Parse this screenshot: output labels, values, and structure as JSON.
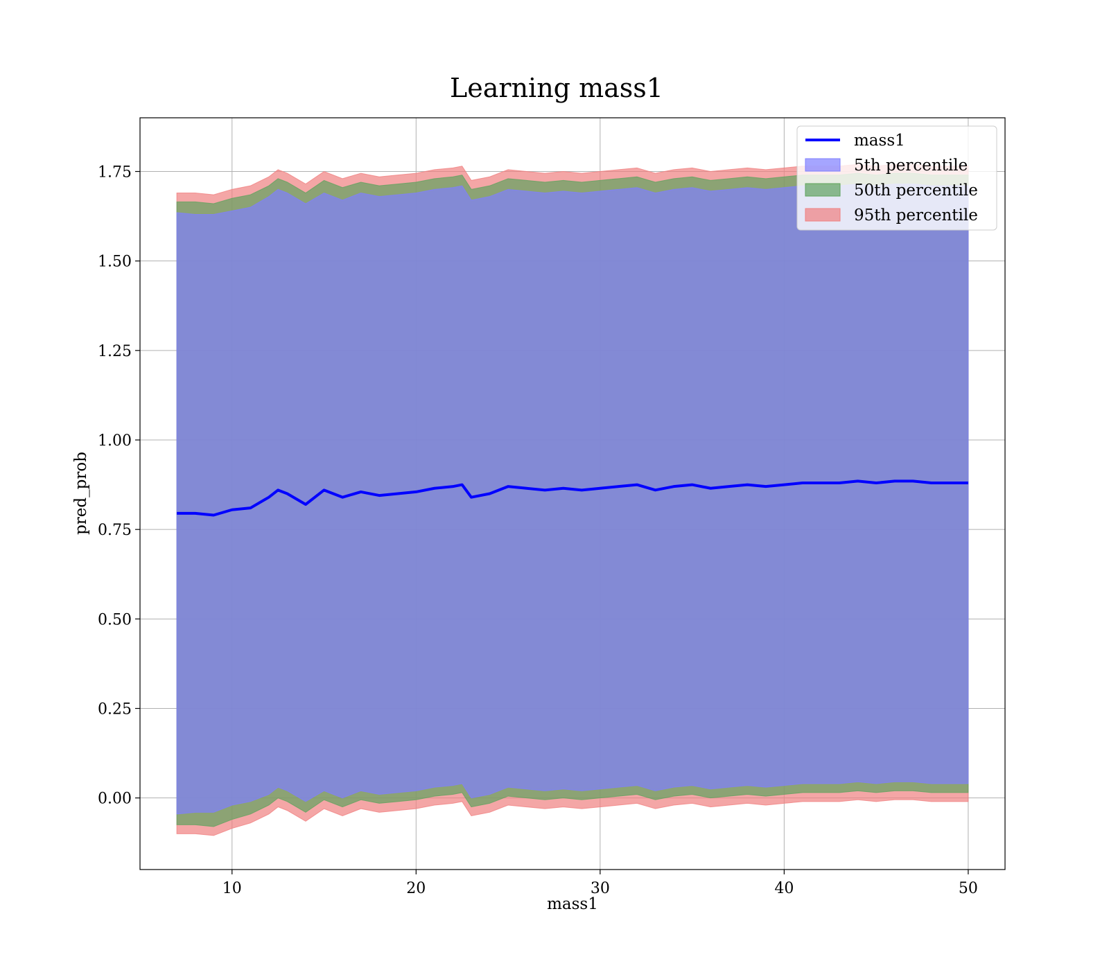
{
  "chart_data": {
    "type": "area",
    "title": "Learning mass1",
    "xlabel": "mass1",
    "ylabel": "pred_prob",
    "xlim": [
      5,
      52
    ],
    "ylim": [
      -0.2,
      1.9
    ],
    "xticks": [
      10,
      20,
      30,
      40,
      50
    ],
    "yticks": [
      0.0,
      0.25,
      0.5,
      0.75,
      1.0,
      1.25,
      1.5,
      1.75
    ],
    "ytick_labels": [
      "0.00",
      "0.25",
      "0.50",
      "0.75",
      "1.00",
      "1.25",
      "1.50",
      "1.75"
    ],
    "xtick_labels": [
      "10",
      "20",
      "30",
      "40",
      "50"
    ],
    "grid": true,
    "legend_position": "top-right",
    "x": [
      7,
      8,
      9,
      10,
      11,
      12,
      12.5,
      13,
      14,
      15,
      16,
      17,
      18,
      19,
      20,
      21,
      22,
      22.5,
      23,
      24,
      25,
      26,
      27,
      28,
      29,
      30,
      31,
      32,
      33,
      34,
      35,
      36,
      37,
      38,
      39,
      40,
      41,
      42,
      43,
      44,
      45,
      46,
      47,
      48,
      49,
      50
    ],
    "series": [
      {
        "name": "mass1",
        "style": "line",
        "color": "#0000ff",
        "values": [
          0.795,
          0.795,
          0.79,
          0.805,
          0.81,
          0.84,
          0.86,
          0.85,
          0.82,
          0.86,
          0.84,
          0.855,
          0.845,
          0.85,
          0.855,
          0.865,
          0.87,
          0.875,
          0.84,
          0.85,
          0.87,
          0.865,
          0.86,
          0.865,
          0.86,
          0.865,
          0.87,
          0.875,
          0.86,
          0.87,
          0.875,
          0.865,
          0.87,
          0.875,
          0.87,
          0.875,
          0.88,
          0.88,
          0.88,
          0.885,
          0.88,
          0.885,
          0.885,
          0.88,
          0.88,
          0.88
        ]
      },
      {
        "name": "5th percentile",
        "style": "band",
        "color": "#7f7fff",
        "lower": [
          -0.045,
          -0.04,
          -0.04,
          -0.02,
          -0.01,
          0.01,
          0.03,
          0.02,
          -0.01,
          0.02,
          0.0,
          0.02,
          0.01,
          0.015,
          0.02,
          0.03,
          0.035,
          0.04,
          0.0,
          0.01,
          0.03,
          0.025,
          0.02,
          0.025,
          0.02,
          0.025,
          0.03,
          0.035,
          0.02,
          0.03,
          0.035,
          0.025,
          0.03,
          0.035,
          0.03,
          0.035,
          0.04,
          0.04,
          0.04,
          0.045,
          0.04,
          0.045,
          0.045,
          0.04,
          0.04,
          0.04
        ],
        "upper": [
          1.635,
          1.63,
          1.63,
          1.64,
          1.65,
          1.68,
          1.7,
          1.69,
          1.66,
          1.69,
          1.67,
          1.69,
          1.68,
          1.685,
          1.69,
          1.7,
          1.705,
          1.71,
          1.67,
          1.68,
          1.7,
          1.695,
          1.69,
          1.695,
          1.69,
          1.695,
          1.7,
          1.705,
          1.69,
          1.7,
          1.705,
          1.695,
          1.7,
          1.705,
          1.7,
          1.705,
          1.71,
          1.71,
          1.71,
          1.715,
          1.71,
          1.715,
          1.715,
          1.71,
          1.71,
          1.71
        ]
      },
      {
        "name": "50th percentile",
        "style": "band",
        "color": "#5fa35f",
        "lower": [
          -0.075,
          -0.075,
          -0.08,
          -0.06,
          -0.045,
          -0.02,
          0.0,
          -0.01,
          -0.04,
          -0.005,
          -0.025,
          -0.005,
          -0.015,
          -0.01,
          -0.005,
          0.005,
          0.01,
          0.015,
          -0.025,
          -0.015,
          0.005,
          0.0,
          -0.005,
          0.0,
          -0.005,
          0.0,
          0.005,
          0.01,
          -0.005,
          0.005,
          0.01,
          0.0,
          0.005,
          0.01,
          0.005,
          0.01,
          0.015,
          0.015,
          0.015,
          0.02,
          0.015,
          0.02,
          0.02,
          0.015,
          0.015,
          0.015
        ],
        "upper": [
          1.665,
          1.665,
          1.66,
          1.675,
          1.685,
          1.71,
          1.73,
          1.72,
          1.69,
          1.725,
          1.705,
          1.72,
          1.71,
          1.715,
          1.72,
          1.73,
          1.735,
          1.74,
          1.7,
          1.71,
          1.73,
          1.725,
          1.72,
          1.725,
          1.72,
          1.725,
          1.73,
          1.735,
          1.72,
          1.73,
          1.735,
          1.725,
          1.73,
          1.735,
          1.73,
          1.735,
          1.74,
          1.74,
          1.74,
          1.745,
          1.74,
          1.745,
          1.745,
          1.74,
          1.74,
          1.74
        ]
      },
      {
        "name": "95th percentile",
        "style": "band",
        "color": "#f08080",
        "lower": [
          -0.1,
          -0.1,
          -0.105,
          -0.085,
          -0.07,
          -0.045,
          -0.025,
          -0.035,
          -0.065,
          -0.03,
          -0.05,
          -0.03,
          -0.04,
          -0.035,
          -0.03,
          -0.02,
          -0.015,
          -0.01,
          -0.05,
          -0.04,
          -0.02,
          -0.025,
          -0.03,
          -0.025,
          -0.03,
          -0.025,
          -0.02,
          -0.015,
          -0.03,
          -0.02,
          -0.015,
          -0.025,
          -0.02,
          -0.015,
          -0.02,
          -0.015,
          -0.01,
          -0.01,
          -0.01,
          -0.005,
          -0.01,
          -0.005,
          -0.005,
          -0.01,
          -0.01,
          -0.01
        ],
        "upper": [
          1.69,
          1.69,
          1.685,
          1.7,
          1.71,
          1.735,
          1.755,
          1.745,
          1.715,
          1.75,
          1.73,
          1.745,
          1.735,
          1.74,
          1.745,
          1.755,
          1.76,
          1.765,
          1.725,
          1.735,
          1.755,
          1.75,
          1.745,
          1.75,
          1.745,
          1.75,
          1.755,
          1.76,
          1.745,
          1.755,
          1.76,
          1.75,
          1.755,
          1.76,
          1.755,
          1.76,
          1.765,
          1.765,
          1.765,
          1.77,
          1.765,
          1.77,
          1.77,
          1.765,
          1.765,
          1.765
        ]
      }
    ]
  }
}
